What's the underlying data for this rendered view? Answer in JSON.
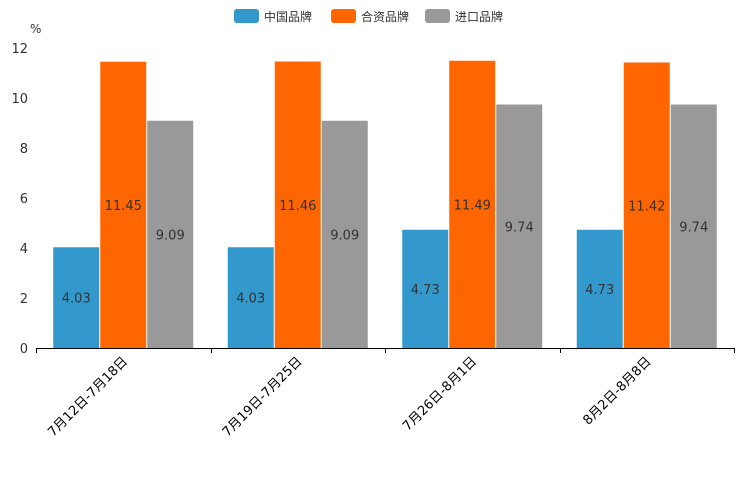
{
  "chart_data": {
    "type": "bar",
    "title": "",
    "xlabel": "",
    "ylabel": "%",
    "ylim": [
      0,
      12
    ],
    "yticks": [
      0,
      2,
      4,
      6,
      8,
      10,
      12
    ],
    "categories": [
      "7月12日-7月18日",
      "7月19日-7月25日",
      "7月26日-8月1日",
      "8月2日-8月8日"
    ],
    "series": [
      {
        "name": "中国品牌",
        "color": "#3399cc",
        "values": [
          4.03,
          4.03,
          4.73,
          4.73
        ]
      },
      {
        "name": "合资品牌",
        "color": "#ff6600",
        "values": [
          11.45,
          11.46,
          11.49,
          11.42
        ]
      },
      {
        "name": "进口品牌",
        "color": "#999999",
        "values": [
          9.09,
          9.09,
          9.74,
          9.74
        ]
      }
    ],
    "legend": "top-center",
    "grid": false
  }
}
